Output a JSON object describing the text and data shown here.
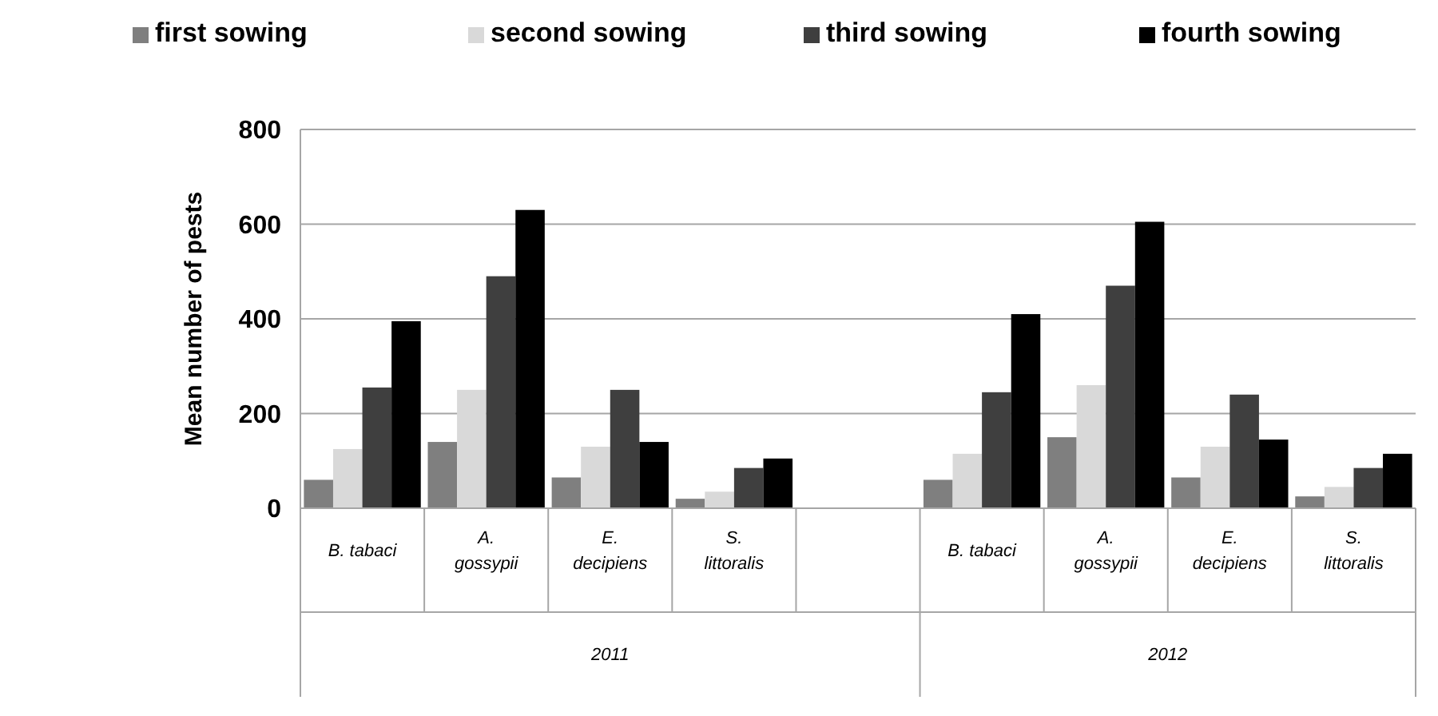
{
  "chart_data": {
    "type": "bar",
    "ylabel": "Mean number of pests",
    "categories": [
      "B. tabaci",
      "A. gossypii",
      "E. decipiens",
      "S. littoralis",
      null,
      "B. tabaci",
      "A. gossypii",
      "E. decipiens",
      "S. littoralis"
    ],
    "series": [
      {
        "name": "first sowing",
        "color": "#7f7f7f",
        "values": [
          60,
          140,
          65,
          20,
          null,
          60,
          150,
          65,
          25
        ]
      },
      {
        "name": "second sowing",
        "color": "#d9d9d9",
        "values": [
          125,
          250,
          130,
          35,
          null,
          115,
          260,
          130,
          45
        ]
      },
      {
        "name": "third sowing",
        "color": "#3f3f3f",
        "values": [
          255,
          490,
          250,
          85,
          null,
          245,
          470,
          240,
          85
        ]
      },
      {
        "name": "fourth sowing",
        "color": "#000000",
        "values": [
          395,
          630,
          140,
          105,
          null,
          410,
          605,
          145,
          115
        ]
      }
    ],
    "ylim": [
      0,
      800
    ],
    "yticks": [
      0,
      200,
      400,
      600,
      800
    ],
    "grid": "y",
    "legend": "top",
    "annotations": [
      "2011",
      "2012"
    ]
  }
}
